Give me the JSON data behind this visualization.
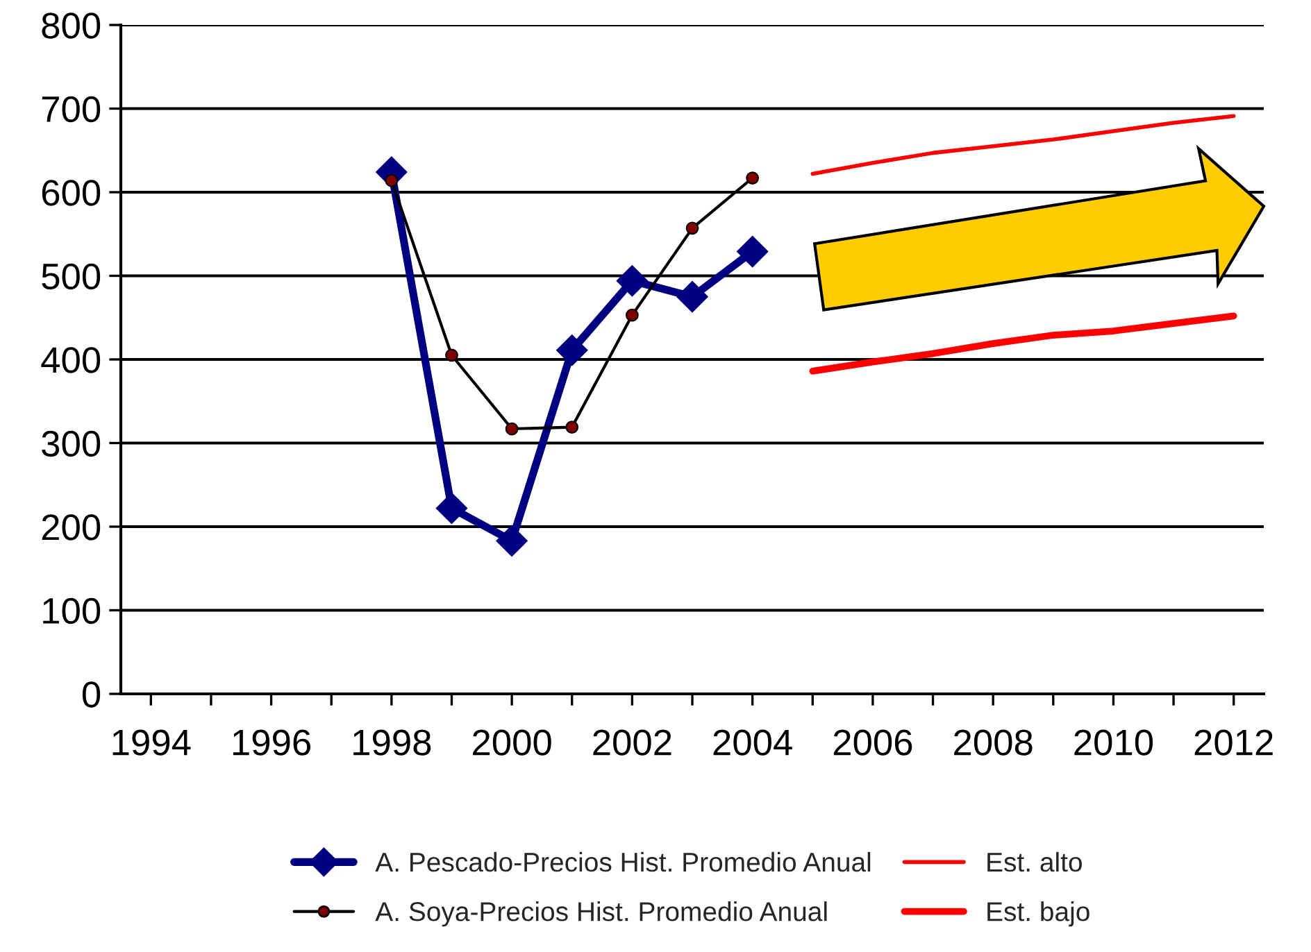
{
  "chart_data": {
    "type": "line",
    "xlim": [
      1993.5,
      2012.5
    ],
    "xticks": [
      1994,
      {
        "value": 1995,
        "label": null
      },
      1996,
      {
        "value": 1997,
        "label": null
      },
      1998,
      {
        "value": 1999,
        "label": null
      },
      2000,
      {
        "value": 2001,
        "label": null
      },
      2002,
      {
        "value": 2003,
        "label": null
      },
      2004,
      {
        "value": 2005,
        "label": null
      },
      2006,
      {
        "value": 2007,
        "label": null
      },
      2008,
      {
        "value": 2009,
        "label": null
      },
      2010,
      {
        "value": 2011,
        "label": null
      },
      2012
    ],
    "ylim": [
      0,
      800
    ],
    "yticks": [
      0,
      100,
      200,
      300,
      400,
      500,
      600,
      700,
      800
    ],
    "grid": "y",
    "legend": "bottom",
    "series": [
      {
        "name": "A. Pescado-Precios Hist. Promedio Anual",
        "color": "#000080",
        "marker": "diamond",
        "x": [
          1998,
          1999,
          2000,
          2001,
          2002,
          2003,
          2004
        ],
        "values": [
          624,
          222,
          183,
          411,
          494,
          475,
          529
        ]
      },
      {
        "name": "A. Soya-Precios Hist. Promedio Anual",
        "color": "#000000",
        "marker": "circle",
        "x": [
          1998,
          1999,
          2000,
          2001,
          2002,
          2003,
          2004
        ],
        "values": [
          614,
          405,
          317,
          319,
          453,
          557,
          617
        ]
      },
      {
        "name": "Est. alto",
        "color": "#ff0000",
        "marker": "none",
        "x": [
          2005,
          2006,
          2007,
          2008,
          2009,
          2010,
          2011,
          2012
        ],
        "values": [
          622,
          635,
          647,
          655,
          663,
          673,
          683,
          691
        ]
      },
      {
        "name": "Est. bajo",
        "color": "#ff0000",
        "marker": "none",
        "x": [
          2005,
          2006,
          2007,
          2008,
          2009,
          2010,
          2011,
          2012
        ],
        "values": [
          386,
          397,
          407,
          419,
          429,
          434,
          443,
          452
        ]
      }
    ]
  }
}
